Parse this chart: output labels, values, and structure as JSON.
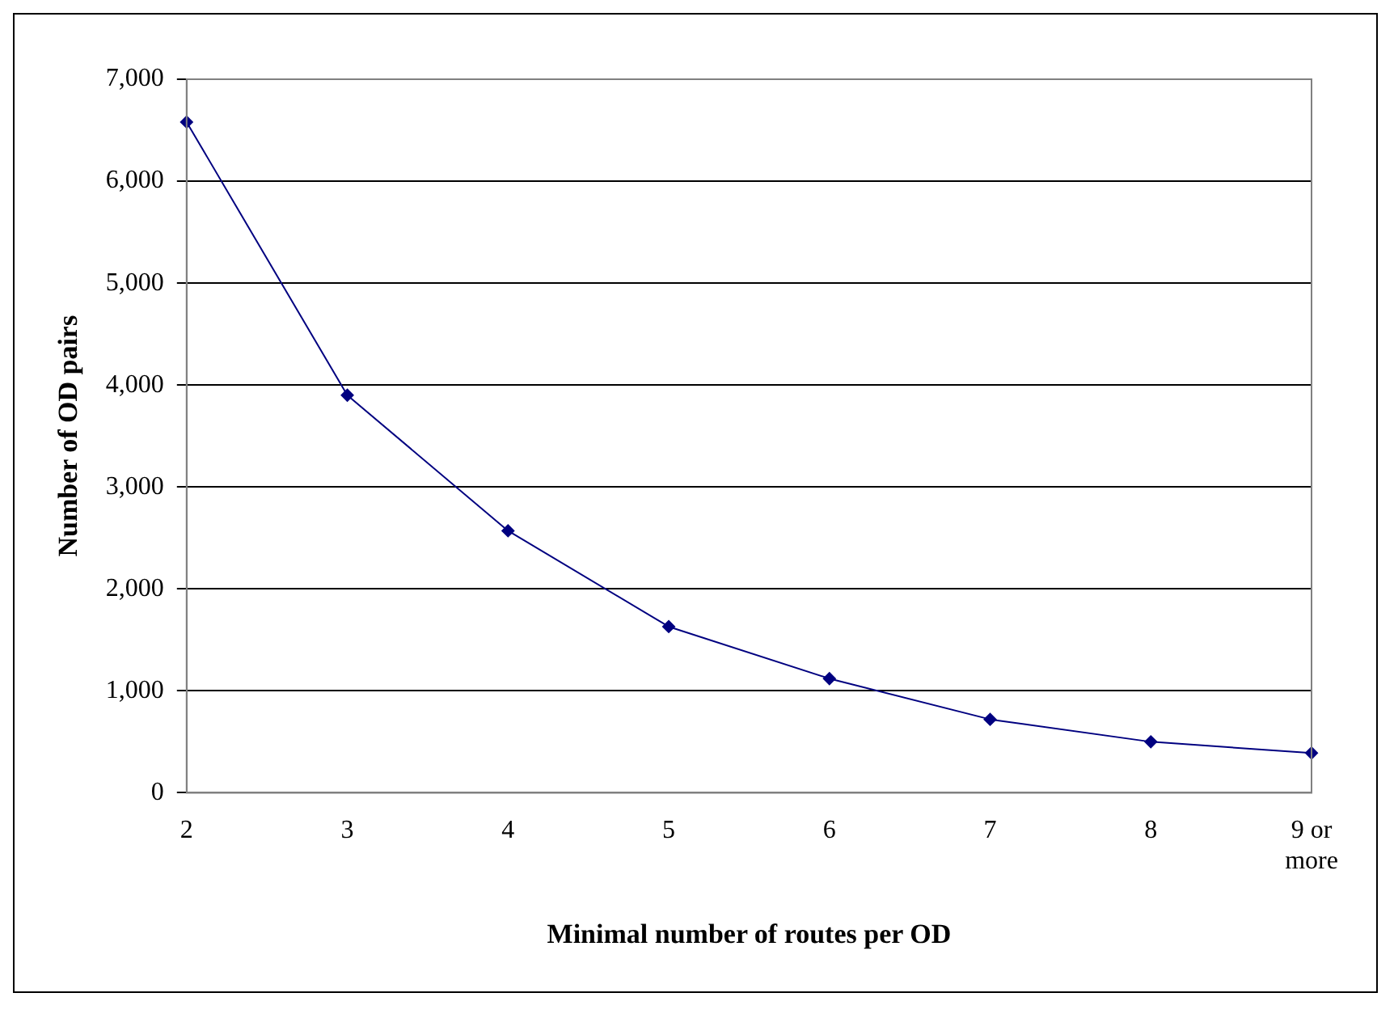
{
  "chart_data": {
    "type": "line",
    "xlabel": "Minimal number of routes per OD",
    "ylabel": "Number of OD pairs",
    "categories": [
      "2",
      "3",
      "4",
      "5",
      "6",
      "7",
      "8",
      "9 or more"
    ],
    "series": [
      {
        "color": "#000080",
        "values": [
          6580,
          3900,
          2570,
          1630,
          1120,
          720,
          500,
          390
        ]
      }
    ],
    "ylim": [
      0,
      7000
    ],
    "yticks": [
      {
        "value": 0,
        "label": "0"
      },
      {
        "value": 1000,
        "label": "1,000"
      },
      {
        "value": 2000,
        "label": "2,000"
      },
      {
        "value": 3000,
        "label": "3,000"
      },
      {
        "value": 4000,
        "label": "4,000"
      },
      {
        "value": 5000,
        "label": "5,000"
      },
      {
        "value": 6000,
        "label": "6,000"
      },
      {
        "value": 7000,
        "label": "7,000"
      }
    ],
    "grid": "y",
    "legend": false,
    "marker": "diamond",
    "line_style": "solid"
  }
}
